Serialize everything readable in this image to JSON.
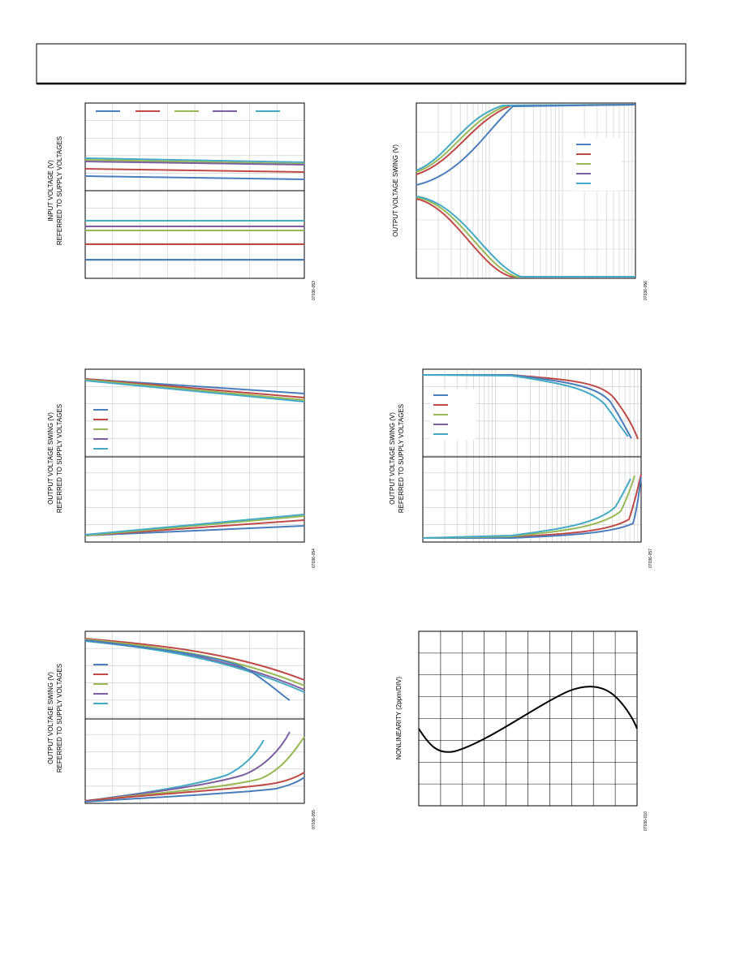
{
  "figures": [
    {
      "ylabel": [
        "INPUT VOLTAGE (V)",
        "REFERRED TO SUPPLY VOLTAGES"
      ],
      "code": "07036-053"
    },
    {
      "ylabel": [
        "OUTPUT VOLTAGE SWING (V)"
      ],
      "code": "07036-056"
    },
    {
      "ylabel": [
        "OUTPUT VOLTAGE SWING (V)",
        "REFERRED TO SUPPLY VOLTAGES"
      ],
      "code": "07036-054"
    },
    {
      "ylabel": [
        "OUTPUT VOLTAGE SWING (V)",
        "REFERRED TO SUPPLY VOLTAGES"
      ],
      "code": "07036-057"
    },
    {
      "ylabel": [
        "OUTPUT VOLTAGE SWING (V)",
        "REFERRED TO SUPPLY VOLTAGES"
      ],
      "code": "07036-055"
    },
    {
      "ylabel": [
        "NONLINEARITY (2ppm/DIV)"
      ],
      "code": "07036-010"
    }
  ]
}
